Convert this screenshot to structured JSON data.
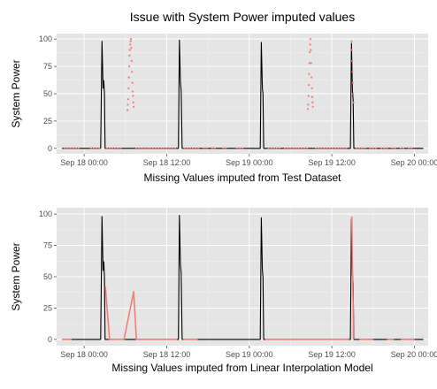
{
  "chart_data": [
    {
      "type": "line",
      "title": "Issue with System Power imputed values",
      "xlabel": "Missing Values imputed from Test Dataset",
      "ylabel": "System Power",
      "x_unit": "hours",
      "xlim": [
        -4,
        50
      ],
      "ylim": [
        -5,
        105
      ],
      "x_ticks": [
        {
          "x": 0,
          "label": "Sep 18 00:00"
        },
        {
          "x": 12,
          "label": "Sep 18 12:00"
        },
        {
          "x": 24,
          "label": "Sep 19 00:00"
        },
        {
          "x": 36,
          "label": "Sep 19 12:00"
        },
        {
          "x": 48,
          "label": "Sep 20 00:00"
        }
      ],
      "y_ticks": [
        0,
        25,
        50,
        75,
        100
      ],
      "grid": true,
      "series": [
        {
          "color": "#000000",
          "style": "line",
          "segments": [
            [
              [
                -3.2,
                0
              ],
              [
                2.4,
                0
              ],
              [
                2.6,
                98
              ],
              [
                2.75,
                55
              ],
              [
                2.85,
                62
              ],
              [
                2.95,
                50
              ],
              [
                3.05,
                0
              ],
              [
                13.7,
                0
              ],
              [
                13.85,
                99
              ],
              [
                14.0,
                60
              ],
              [
                14.1,
                53
              ],
              [
                14.25,
                0
              ],
              [
                25.6,
                0
              ],
              [
                25.75,
                97
              ],
              [
                25.9,
                55
              ],
              [
                26.0,
                50
              ],
              [
                26.1,
                0
              ],
              [
                38.7,
                0
              ],
              [
                38.85,
                96
              ],
              [
                39.0,
                52
              ],
              [
                39.1,
                45
              ],
              [
                39.2,
                0
              ],
              [
                49.3,
                0
              ]
            ]
          ]
        },
        {
          "color": "#f8766d",
          "style": "points",
          "segments": [
            [
              [
                -2.8,
                0
              ],
              [
                -2.4,
                0
              ],
              [
                -2.0,
                0
              ],
              [
                -1.6,
                0
              ],
              [
                -1.2,
                0
              ],
              [
                -0.8,
                0
              ],
              [
                1.0,
                0
              ],
              [
                1.4,
                0
              ],
              [
                1.8,
                0
              ],
              [
                2.2,
                0
              ],
              [
                3.3,
                0
              ],
              [
                3.7,
                0
              ],
              [
                4.1,
                0
              ],
              [
                4.5,
                0
              ],
              [
                4.9,
                0
              ],
              [
                5.3,
                0
              ]
            ],
            [
              [
                6.3,
                35
              ],
              [
                6.35,
                40
              ],
              [
                6.4,
                45
              ],
              [
                6.45,
                55
              ],
              [
                6.5,
                65
              ],
              [
                6.55,
                75
              ],
              [
                6.6,
                85
              ],
              [
                6.65,
                90
              ],
              [
                6.7,
                95
              ],
              [
                6.75,
                98
              ],
              [
                6.8,
                100
              ],
              [
                6.85,
                92
              ],
              [
                6.9,
                80
              ],
              [
                6.95,
                70
              ],
              [
                7.0,
                60
              ],
              [
                7.05,
                52
              ],
              [
                7.1,
                48
              ],
              [
                7.15,
                42
              ],
              [
                7.2,
                38
              ]
            ],
            [
              [
                7.6,
                0
              ],
              [
                8.0,
                0
              ],
              [
                8.4,
                0
              ],
              [
                8.8,
                0
              ],
              [
                9.2,
                0
              ],
              [
                9.6,
                0
              ],
              [
                10.0,
                0
              ],
              [
                10.4,
                0
              ],
              [
                10.8,
                0
              ],
              [
                11.2,
                0
              ],
              [
                11.6,
                0
              ],
              [
                12.0,
                0
              ],
              [
                12.4,
                0
              ],
              [
                12.8,
                0
              ],
              [
                13.2,
                0
              ]
            ],
            [
              [
                14.6,
                0
              ],
              [
                15.0,
                0
              ],
              [
                15.4,
                0
              ],
              [
                15.8,
                0
              ],
              [
                16.2,
                0
              ],
              [
                16.6,
                0
              ],
              [
                17.4,
                0
              ],
              [
                17.8,
                0
              ],
              [
                18.6,
                0
              ],
              [
                19.0,
                0
              ],
              [
                20.2,
                0
              ],
              [
                20.6,
                0
              ],
              [
                22.2,
                0
              ],
              [
                22.6,
                0
              ],
              [
                23.0,
                0
              ]
            ],
            [
              [
                26.8,
                0
              ],
              [
                27.2,
                0
              ],
              [
                27.6,
                0
              ],
              [
                28.0,
                0
              ],
              [
                28.4,
                0
              ],
              [
                29.2,
                0
              ],
              [
                29.6,
                0
              ],
              [
                30.0,
                0
              ],
              [
                30.4,
                0
              ],
              [
                30.8,
                0
              ],
              [
                31.2,
                0
              ],
              [
                31.6,
                0
              ],
              [
                32.0,
                0
              ],
              [
                32.4,
                0
              ]
            ],
            [
              [
                32.5,
                36
              ],
              [
                32.55,
                40
              ],
              [
                32.6,
                48
              ],
              [
                32.65,
                58
              ],
              [
                32.7,
                68
              ],
              [
                32.75,
                78
              ],
              [
                32.8,
                88
              ],
              [
                32.85,
                95
              ],
              [
                32.9,
                100
              ],
              [
                32.95,
                90
              ],
              [
                33.0,
                78
              ],
              [
                33.05,
                65
              ],
              [
                33.1,
                55
              ],
              [
                33.15,
                47
              ],
              [
                33.2,
                42
              ],
              [
                33.25,
                38
              ]
            ],
            [
              [
                33.7,
                0
              ],
              [
                34.1,
                0
              ],
              [
                34.5,
                0
              ],
              [
                34.9,
                0
              ],
              [
                35.3,
                0
              ],
              [
                35.7,
                0
              ],
              [
                36.1,
                0
              ],
              [
                36.5,
                0
              ],
              [
                36.9,
                0
              ],
              [
                37.3,
                0
              ],
              [
                37.7,
                0
              ],
              [
                38.1,
                0
              ]
            ],
            [
              [
                38.85,
                98
              ],
              [
                38.9,
                90
              ],
              [
                38.95,
                80
              ],
              [
                39.0,
                70
              ],
              [
                39.05,
                60
              ],
              [
                39.1,
                50
              ],
              [
                39.15,
                42
              ]
            ],
            [
              [
                39.6,
                0
              ],
              [
                40.0,
                0
              ],
              [
                40.4,
                0
              ],
              [
                40.8,
                0
              ],
              [
                41.6,
                0
              ],
              [
                42.0,
                0
              ],
              [
                42.4,
                0
              ],
              [
                43.2,
                0
              ],
              [
                43.6,
                0
              ],
              [
                44.0,
                0
              ],
              [
                44.8,
                0
              ],
              [
                45.2,
                0
              ],
              [
                46.0,
                0
              ],
              [
                46.4,
                0
              ],
              [
                47.2,
                0
              ],
              [
                47.6,
                0
              ]
            ]
          ]
        }
      ]
    },
    {
      "type": "line",
      "title": "",
      "xlabel": "Missing Values imputed from Linear Interpolation Model",
      "ylabel": "System Power",
      "x_unit": "hours",
      "xlim": [
        -4,
        50
      ],
      "ylim": [
        -5,
        105
      ],
      "x_ticks": [
        {
          "x": 0,
          "label": "Sep 18 00:00"
        },
        {
          "x": 12,
          "label": "Sep 18 12:00"
        },
        {
          "x": 24,
          "label": "Sep 19 00:00"
        },
        {
          "x": 36,
          "label": "Sep 19 12:00"
        },
        {
          "x": 48,
          "label": "Sep 20 00:00"
        }
      ],
      "y_ticks": [
        0,
        25,
        50,
        75,
        100
      ],
      "grid": true,
      "series": [
        {
          "color": "#000000",
          "style": "line",
          "segments": [
            [
              [
                -3.2,
                0
              ],
              [
                2.4,
                0
              ],
              [
                2.6,
                98
              ],
              [
                2.75,
                55
              ],
              [
                2.85,
                62
              ],
              [
                2.95,
                50
              ],
              [
                3.05,
                0
              ],
              [
                13.7,
                0
              ],
              [
                13.85,
                99
              ],
              [
                14.0,
                60
              ],
              [
                14.1,
                53
              ],
              [
                14.25,
                0
              ],
              [
                25.6,
                0
              ],
              [
                25.75,
                97
              ],
              [
                25.9,
                55
              ],
              [
                26.0,
                50
              ],
              [
                26.1,
                0
              ],
              [
                38.7,
                0
              ],
              [
                38.85,
                96
              ],
              [
                39.0,
                52
              ],
              [
                39.1,
                45
              ],
              [
                39.2,
                0
              ],
              [
                49.3,
                0
              ]
            ]
          ]
        },
        {
          "color": "#f8766d",
          "style": "line",
          "segments": [
            [
              [
                -3.2,
                0
              ],
              [
                -1.8,
                0
              ]
            ],
            [
              [
                3.1,
                42
              ],
              [
                3.4,
                20
              ],
              [
                3.7,
                0
              ],
              [
                5.8,
                0
              ],
              [
                7.2,
                38
              ],
              [
                7.6,
                0
              ],
              [
                13.5,
                0
              ]
            ],
            [
              [
                14.4,
                0
              ],
              [
                16.5,
                0
              ]
            ],
            [
              [
                26.3,
                0
              ],
              [
                38.5,
                0
              ]
            ],
            [
              [
                38.9,
                98
              ],
              [
                39.0,
                60
              ],
              [
                39.1,
                30
              ],
              [
                39.15,
                0
              ]
            ],
            [
              [
                40.0,
                0
              ],
              [
                42.0,
                0
              ]
            ],
            [
              [
                44.0,
                0
              ],
              [
                45.0,
                0
              ]
            ],
            [
              [
                46.0,
                0
              ],
              [
                48.0,
                0
              ]
            ]
          ]
        }
      ]
    }
  ]
}
